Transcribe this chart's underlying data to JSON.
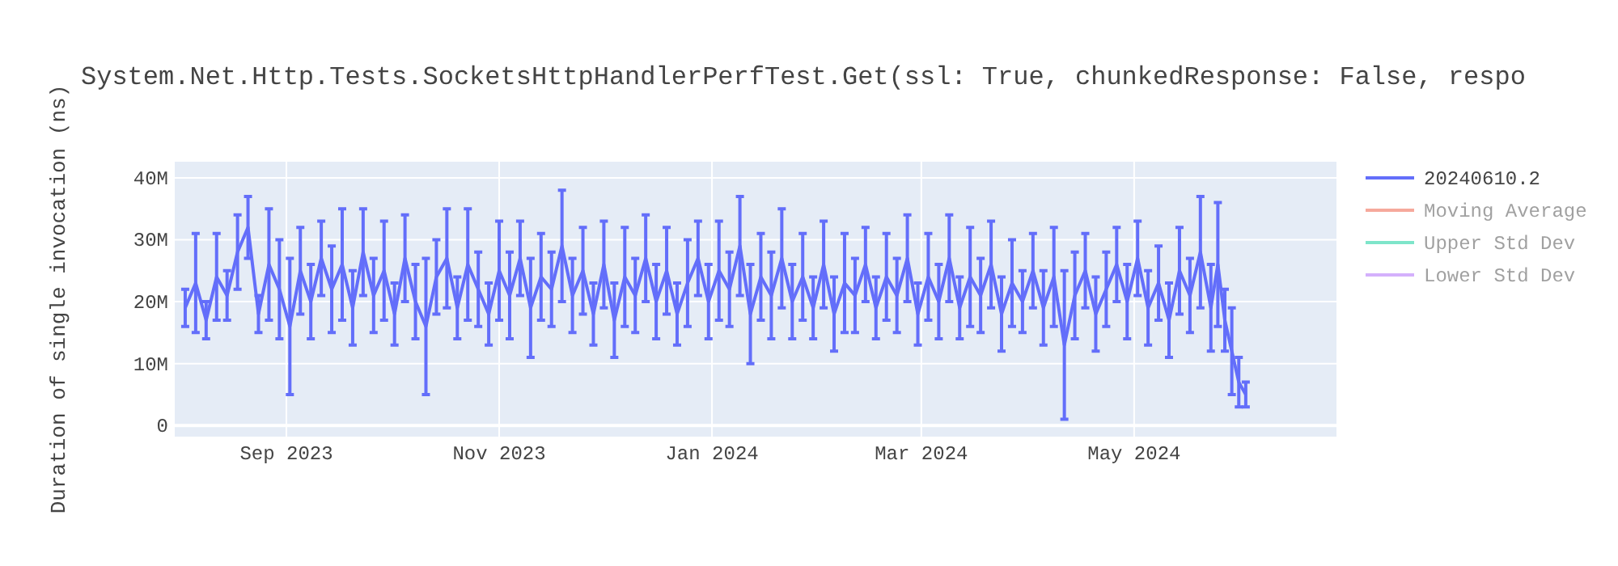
{
  "chart_data": {
    "type": "line",
    "title": "System.Net.Http.Tests.SocketsHttpHandlerPerfTest.Get(ssl: True, chunkedResponse: False, respo",
    "ylabel": "Duration of single invocation (ns)",
    "x": [
      "2023-08-03",
      "2023-08-06",
      "2023-08-09",
      "2023-08-12",
      "2023-08-15",
      "2023-08-18",
      "2023-08-21",
      "2023-08-24",
      "2023-08-27",
      "2023-08-30",
      "2023-09-02",
      "2023-09-05",
      "2023-09-08",
      "2023-09-11",
      "2023-09-14",
      "2023-09-17",
      "2023-09-20",
      "2023-09-23",
      "2023-09-26",
      "2023-09-29",
      "2023-10-02",
      "2023-10-05",
      "2023-10-08",
      "2023-10-11",
      "2023-10-14",
      "2023-10-17",
      "2023-10-20",
      "2023-10-23",
      "2023-10-26",
      "2023-10-29",
      "2023-11-01",
      "2023-11-04",
      "2023-11-07",
      "2023-11-10",
      "2023-11-13",
      "2023-11-16",
      "2023-11-19",
      "2023-11-22",
      "2023-11-25",
      "2023-11-28",
      "2023-12-01",
      "2023-12-04",
      "2023-12-07",
      "2023-12-10",
      "2023-12-13",
      "2023-12-16",
      "2023-12-19",
      "2023-12-22",
      "2023-12-25",
      "2023-12-28",
      "2023-12-31",
      "2024-01-03",
      "2024-01-06",
      "2024-01-09",
      "2024-01-12",
      "2024-01-15",
      "2024-01-18",
      "2024-01-21",
      "2024-01-24",
      "2024-01-27",
      "2024-01-30",
      "2024-02-02",
      "2024-02-05",
      "2024-02-08",
      "2024-02-11",
      "2024-02-14",
      "2024-02-17",
      "2024-02-20",
      "2024-02-23",
      "2024-02-26",
      "2024-02-29",
      "2024-03-03",
      "2024-03-06",
      "2024-03-09",
      "2024-03-12",
      "2024-03-15",
      "2024-03-18",
      "2024-03-21",
      "2024-03-24",
      "2024-03-27",
      "2024-03-30",
      "2024-04-02",
      "2024-04-05",
      "2024-04-08",
      "2024-04-11",
      "2024-04-14",
      "2024-04-17",
      "2024-04-20",
      "2024-04-23",
      "2024-04-26",
      "2024-04-29",
      "2024-05-02",
      "2024-05-05",
      "2024-05-08",
      "2024-05-11",
      "2024-05-14",
      "2024-05-17",
      "2024-05-20",
      "2024-05-23",
      "2024-05-25",
      "2024-05-27",
      "2024-05-29",
      "2024-05-31",
      "2024-06-02"
    ],
    "series": [
      {
        "name": "20240610.2",
        "color": "#636efa",
        "values": [
          19000000,
          23000000,
          17000000,
          24000000,
          21000000,
          28000000,
          32000000,
          18000000,
          26000000,
          22000000,
          16000000,
          25000000,
          20000000,
          27000000,
          22000000,
          26000000,
          19000000,
          28000000,
          21000000,
          25000000,
          18000000,
          27000000,
          20000000,
          16000000,
          24000000,
          27000000,
          19000000,
          26000000,
          22000000,
          18000000,
          25000000,
          21000000,
          27000000,
          19000000,
          24000000,
          22000000,
          29000000,
          21000000,
          25000000,
          18000000,
          26000000,
          17000000,
          24000000,
          21000000,
          27000000,
          20000000,
          25000000,
          18000000,
          23000000,
          27000000,
          20000000,
          25000000,
          22000000,
          29000000,
          18000000,
          24000000,
          21000000,
          27000000,
          20000000,
          24000000,
          19000000,
          26000000,
          18000000,
          23000000,
          21000000,
          26000000,
          19000000,
          24000000,
          21000000,
          27000000,
          18000000,
          24000000,
          20000000,
          27000000,
          19000000,
          24000000,
          21000000,
          26000000,
          18000000,
          23000000,
          20000000,
          25000000,
          19000000,
          24000000,
          13000000,
          21000000,
          25000000,
          18000000,
          22000000,
          26000000,
          20000000,
          27000000,
          19000000,
          23000000,
          17000000,
          25000000,
          21000000,
          28000000,
          19000000,
          26000000,
          17000000,
          12000000,
          7000000,
          5000000
        ],
        "errors": [
          3000000,
          8000000,
          3000000,
          7000000,
          4000000,
          6000000,
          5000000,
          3000000,
          9000000,
          8000000,
          11000000,
          7000000,
          6000000,
          6000000,
          7000000,
          9000000,
          6000000,
          7000000,
          6000000,
          8000000,
          5000000,
          7000000,
          6000000,
          11000000,
          6000000,
          8000000,
          5000000,
          9000000,
          6000000,
          5000000,
          8000000,
          7000000,
          6000000,
          8000000,
          7000000,
          6000000,
          9000000,
          6000000,
          7000000,
          5000000,
          7000000,
          6000000,
          8000000,
          6000000,
          7000000,
          6000000,
          7000000,
          5000000,
          7000000,
          6000000,
          6000000,
          8000000,
          6000000,
          8000000,
          8000000,
          7000000,
          7000000,
          8000000,
          6000000,
          7000000,
          5000000,
          7000000,
          6000000,
          8000000,
          6000000,
          6000000,
          5000000,
          7000000,
          6000000,
          7000000,
          5000000,
          7000000,
          6000000,
          7000000,
          5000000,
          8000000,
          6000000,
          7000000,
          6000000,
          7000000,
          5000000,
          6000000,
          6000000,
          8000000,
          12000000,
          7000000,
          6000000,
          6000000,
          6000000,
          6000000,
          6000000,
          6000000,
          6000000,
          6000000,
          6000000,
          7000000,
          6000000,
          9000000,
          7000000,
          10000000,
          5000000,
          7000000,
          4000000,
          2000000
        ]
      },
      {
        "name": "Moving Average",
        "color": "#ef553b",
        "values": [
          null,
          null,
          null,
          null,
          null,
          null,
          null,
          null,
          null,
          null,
          null,
          null,
          null,
          null,
          null,
          null,
          null,
          null,
          null,
          null,
          null,
          null,
          null,
          null,
          null,
          null,
          null,
          null,
          null,
          null,
          null,
          null,
          null,
          null,
          null,
          null,
          null,
          null,
          null,
          null,
          null,
          null,
          null,
          null,
          null,
          null,
          null,
          null,
          null,
          null,
          null,
          null,
          null,
          null,
          null,
          null,
          null,
          null,
          null,
          null,
          null,
          null,
          null,
          null,
          null,
          null,
          null,
          null,
          null,
          null,
          null,
          null,
          null,
          null,
          null,
          null,
          null,
          null,
          null,
          null,
          null,
          null,
          null,
          null,
          null,
          null,
          null,
          null,
          null,
          null,
          null,
          null,
          null,
          null,
          null,
          null,
          null,
          null,
          null,
          null,
          null,
          null,
          null,
          null
        ]
      },
      {
        "name": "Upper Std Dev",
        "color": "#00cc96",
        "values": [
          null,
          null,
          null,
          null,
          null,
          null,
          null,
          null,
          null,
          null,
          null,
          null,
          null,
          null,
          null,
          null,
          null,
          null,
          null,
          null,
          null,
          null,
          null,
          null,
          null,
          null,
          null,
          null,
          null,
          null,
          null,
          null,
          null,
          null,
          null,
          null,
          null,
          null,
          null,
          null,
          null,
          null,
          null,
          null,
          null,
          null,
          null,
          null,
          null,
          null,
          null,
          null,
          null,
          null,
          null,
          null,
          null,
          null,
          null,
          null,
          null,
          null,
          null,
          null,
          null,
          null,
          null,
          null,
          null,
          null,
          null,
          null,
          null,
          null,
          null,
          null,
          null,
          null,
          null,
          null,
          null,
          null,
          null,
          null,
          null,
          null,
          null,
          null,
          null,
          null,
          null,
          null,
          null,
          null,
          null,
          null,
          null,
          null,
          null,
          null,
          null,
          null,
          null,
          null
        ]
      },
      {
        "name": "Lower Std Dev",
        "color": "#ab63fa",
        "values": [
          null,
          null,
          null,
          null,
          null,
          null,
          null,
          null,
          null,
          null,
          null,
          null,
          null,
          null,
          null,
          null,
          null,
          null,
          null,
          null,
          null,
          null,
          null,
          null,
          null,
          null,
          null,
          null,
          null,
          null,
          null,
          null,
          null,
          null,
          null,
          null,
          null,
          null,
          null,
          null,
          null,
          null,
          null,
          null,
          null,
          null,
          null,
          null,
          null,
          null,
          null,
          null,
          null,
          null,
          null,
          null,
          null,
          null,
          null,
          null,
          null,
          null,
          null,
          null,
          null,
          null,
          null,
          null,
          null,
          null,
          null,
          null,
          null,
          null,
          null,
          null,
          null,
          null,
          null,
          null,
          null,
          null,
          null,
          null,
          null,
          null,
          null,
          null,
          null,
          null,
          null,
          null,
          null,
          null,
          null,
          null,
          null,
          null,
          null,
          null,
          null,
          null,
          null,
          null
        ]
      }
    ],
    "xlim": [
      "2023-07-31",
      "2024-06-28"
    ],
    "xticks": [
      {
        "value": "2023-09-01",
        "label": "Sep 2023"
      },
      {
        "value": "2023-11-01",
        "label": "Nov 2023"
      },
      {
        "value": "2024-01-01",
        "label": "Jan 2024"
      },
      {
        "value": "2024-03-01",
        "label": "Mar 2024"
      },
      {
        "value": "2024-05-01",
        "label": "May 2024"
      }
    ],
    "ylim": [
      -1800000,
      42600000
    ],
    "yticks": [
      {
        "value": 0,
        "label": "0"
      },
      {
        "value": 10000000,
        "label": "10M"
      },
      {
        "value": 20000000,
        "label": "20M"
      },
      {
        "value": 30000000,
        "label": "30M"
      },
      {
        "value": 40000000,
        "label": "40M"
      }
    ],
    "grid": true,
    "legend": "top right",
    "marker": "none",
    "line_style": "solid"
  }
}
